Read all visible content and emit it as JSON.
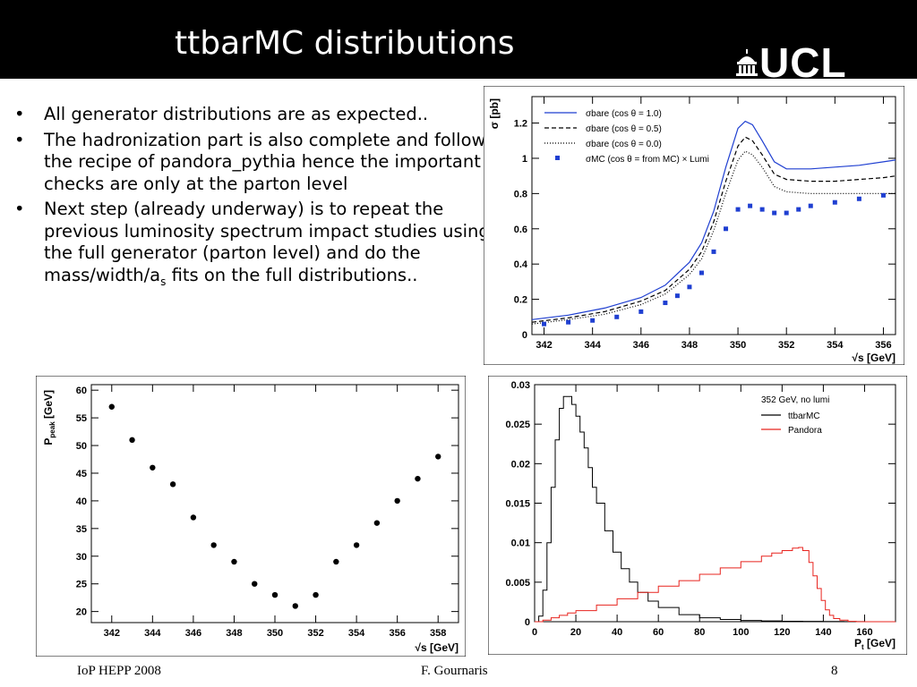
{
  "slide": {
    "title": "ttbarMC distributions",
    "logo": "UCL",
    "bullets": [
      {
        "text": "All generator distributions are as expected.."
      },
      {
        "text": "The hadronization part is also complete and follows the recipe of pandora_pythia hence the important checks are only at the parton level"
      },
      {
        "text_before": "Next step (already underway) is to repeat the previous luminosity spectrum impact studies using the full generator (parton level) and do the mass/width/a",
        "subscript": "s",
        "text_after": " fits on the full distributions.."
      }
    ],
    "bullet_symbol": "•",
    "footer": {
      "left": "IoP HEPP 2008",
      "center": "F. Gournaris",
      "right": "8"
    }
  },
  "chart_data": [
    {
      "type": "line",
      "ylabel": "σ [pb]",
      "xlabel": "√s [GeV]",
      "xlim": [
        341.5,
        356.5
      ],
      "ylim": [
        0,
        1.35
      ],
      "xticks": [
        "342",
        "344",
        "346",
        "348",
        "350",
        "352",
        "354",
        "356"
      ],
      "yticks": [
        "0",
        "0.2",
        "0.4",
        "0.6",
        "0.8",
        "1",
        "1.2"
      ],
      "legend_position": "top-left",
      "series": [
        {
          "name": "σbare (cos θ = 1.0)",
          "style": "solid",
          "color": "#1f3fd1",
          "x": [
            341.5,
            343,
            344.5,
            346,
            347,
            348,
            348.5,
            349,
            349.5,
            350,
            350.3,
            350.6,
            351,
            351.5,
            352,
            353,
            354,
            355,
            356,
            356.5
          ],
          "y": [
            0.085,
            0.11,
            0.15,
            0.21,
            0.28,
            0.41,
            0.52,
            0.7,
            0.95,
            1.17,
            1.21,
            1.19,
            1.1,
            0.98,
            0.94,
            0.94,
            0.95,
            0.96,
            0.98,
            0.99
          ]
        },
        {
          "name": "σbare (cos θ = 0.5)",
          "style": "dashed",
          "color": "#000000",
          "x": [
            341.5,
            343,
            344.5,
            346,
            347,
            348,
            348.5,
            349,
            349.5,
            350,
            350.3,
            350.6,
            351,
            351.5,
            352,
            353,
            354,
            355,
            356,
            356.5
          ],
          "y": [
            0.07,
            0.095,
            0.13,
            0.19,
            0.25,
            0.37,
            0.47,
            0.64,
            0.87,
            1.07,
            1.12,
            1.1,
            1.02,
            0.91,
            0.88,
            0.87,
            0.87,
            0.88,
            0.89,
            0.9
          ]
        },
        {
          "name": "σbare (cos θ = 0.0)",
          "style": "dotted",
          "color": "#000000",
          "x": [
            341.5,
            343,
            344.5,
            346,
            347,
            348,
            348.5,
            349,
            349.5,
            350,
            350.3,
            350.6,
            351,
            351.5,
            352,
            353,
            354,
            355,
            356,
            356.5
          ],
          "y": [
            0.06,
            0.085,
            0.115,
            0.17,
            0.23,
            0.34,
            0.43,
            0.59,
            0.8,
            0.99,
            1.04,
            1.02,
            0.95,
            0.84,
            0.81,
            0.8,
            0.8,
            0.8,
            0.8,
            0.8
          ]
        },
        {
          "name": "σMC (cos θ = from MC) × Lumi",
          "style": "markers",
          "color": "#1f3fd1",
          "x": [
            342,
            343,
            344,
            345,
            346,
            347,
            347.5,
            348,
            348.5,
            349,
            349.5,
            350,
            350.5,
            351,
            351.5,
            352,
            352.5,
            353,
            354,
            355,
            356
          ],
          "y": [
            0.06,
            0.07,
            0.08,
            0.1,
            0.13,
            0.18,
            0.22,
            0.27,
            0.35,
            0.47,
            0.6,
            0.71,
            0.73,
            0.71,
            0.69,
            0.69,
            0.71,
            0.73,
            0.75,
            0.77,
            0.79
          ]
        }
      ]
    },
    {
      "type": "scatter",
      "ylabel_main": "P",
      "ylabel_sub": "peak",
      "ylabel_unit": " [GeV]",
      "xlabel": "√s [GeV]",
      "xlim": [
        341,
        359
      ],
      "ylim": [
        18,
        61
      ],
      "xticks": [
        "342",
        "344",
        "346",
        "348",
        "350",
        "352",
        "354",
        "356",
        "358"
      ],
      "yticks": [
        "20",
        "25",
        "30",
        "35",
        "40",
        "45",
        "50",
        "55",
        "60"
      ],
      "series": [
        {
          "x": [
            342,
            343,
            344,
            345,
            346,
            347,
            348,
            349,
            350,
            351,
            352,
            353,
            354,
            355,
            356,
            357,
            358
          ],
          "y": [
            57,
            51,
            46,
            43,
            37,
            32,
            29,
            25,
            23,
            21,
            23,
            29,
            32,
            36,
            40,
            44,
            48
          ]
        }
      ]
    },
    {
      "type": "line",
      "xlabel_main": "P",
      "xlabel_sub": "t",
      "xlabel_unit": " [GeV]",
      "xlim": [
        0,
        175
      ],
      "ylim": [
        0,
        0.03
      ],
      "xticks": [
        "0",
        "20",
        "40",
        "60",
        "80",
        "100",
        "120",
        "140",
        "160"
      ],
      "yticks": [
        "0",
        "0.005",
        "0.01",
        "0.015",
        "0.02",
        "0.025",
        "0.03"
      ],
      "legend_title": "352 GeV, no lumi",
      "legend_position": "top-right",
      "series": [
        {
          "name": "ttbarMC",
          "color": "#000000",
          "x": [
            0,
            2,
            4,
            6,
            8,
            10,
            12,
            14,
            16,
            18,
            20,
            22,
            24,
            26,
            28,
            30,
            34,
            38,
            42,
            46,
            50,
            55,
            60,
            70,
            80,
            90,
            100,
            110,
            120,
            130,
            140,
            150,
            160,
            175
          ],
          "y": [
            0,
            0.0007,
            0.004,
            0.01,
            0.017,
            0.023,
            0.027,
            0.0285,
            0.0285,
            0.0275,
            0.026,
            0.024,
            0.022,
            0.0195,
            0.017,
            0.015,
            0.0115,
            0.0088,
            0.0067,
            0.005,
            0.0037,
            0.0026,
            0.0018,
            0.0009,
            0.0005,
            0.00028,
            0.00016,
            0.0001,
            6e-05,
            4e-05,
            2e-05,
            1e-05,
            0,
            0
          ]
        },
        {
          "name": "Pandora",
          "color": "#e8241f",
          "x": [
            0,
            4,
            8,
            12,
            16,
            20,
            30,
            40,
            50,
            60,
            70,
            80,
            90,
            100,
            110,
            115,
            120,
            125,
            128,
            130,
            133,
            135,
            137,
            139,
            141,
            143,
            145,
            148,
            152,
            156,
            160,
            175
          ],
          "y": [
            0,
            0.0002,
            0.0005,
            0.0008,
            0.0011,
            0.0014,
            0.0021,
            0.0029,
            0.0037,
            0.0045,
            0.0052,
            0.006,
            0.0068,
            0.0076,
            0.0083,
            0.0087,
            0.009,
            0.0093,
            0.0094,
            0.009,
            0.0075,
            0.0058,
            0.0042,
            0.0027,
            0.0015,
            0.0008,
            0.0004,
            0.0002,
            5e-05,
            0,
            0,
            0
          ]
        }
      ]
    }
  ]
}
